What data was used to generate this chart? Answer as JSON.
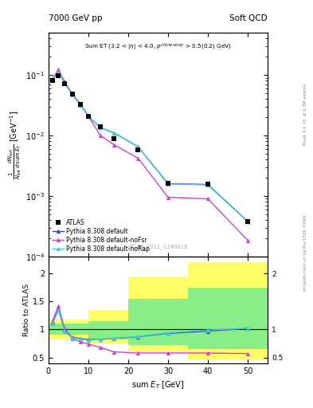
{
  "title_left": "7000 GeV pp",
  "title_right": "Soft QCD",
  "annotation": "Sum ET (3.2 < |η| < 4.0, p$^{ch(neutral)}$ > 0.5(0.2) GeV)",
  "watermark": "ATLAS_2012_I1183818",
  "right_label_top": "Rivet 3.1.10, ≥ 2.3M events",
  "right_label_bottom": "mcplots.cern.ch [arXiv:1306.3436]",
  "x_data": [
    1.0,
    2.5,
    4.0,
    6.0,
    8.0,
    10.0,
    13.0,
    16.5,
    22.5,
    30.0,
    40.0,
    50.0
  ],
  "atlas_y": [
    0.082,
    0.098,
    0.072,
    0.048,
    0.033,
    0.021,
    0.014,
    0.0088,
    0.0058,
    0.0016,
    0.00155,
    0.00038
  ],
  "pythia_default_y": [
    0.085,
    0.115,
    0.075,
    0.048,
    0.033,
    0.021,
    0.0135,
    0.011,
    0.0065,
    0.0016,
    0.00155,
    0.00038
  ],
  "pythia_nofsr_y": [
    0.088,
    0.122,
    0.078,
    0.048,
    0.032,
    0.021,
    0.01,
    0.007,
    0.0042,
    0.00095,
    0.0009,
    0.000185
  ],
  "pythia_norap_y": [
    0.085,
    0.113,
    0.073,
    0.047,
    0.032,
    0.021,
    0.0135,
    0.011,
    0.0065,
    0.00158,
    0.00152,
    0.00038
  ],
  "ratio_default": [
    1.12,
    1.38,
    1.0,
    0.86,
    0.84,
    0.82,
    0.82,
    0.84,
    0.87,
    0.93,
    0.97,
    1.02
  ],
  "ratio_nofsr": [
    1.15,
    1.42,
    1.02,
    0.84,
    0.78,
    0.74,
    0.68,
    0.6,
    0.58,
    0.58,
    0.58,
    0.57
  ],
  "ratio_norap": [
    1.1,
    1.34,
    0.97,
    0.85,
    0.83,
    0.81,
    0.82,
    0.84,
    0.875,
    0.94,
    0.99,
    1.02
  ],
  "band_x_edges": [
    0,
    3,
    10,
    20,
    35,
    55
  ],
  "band_yellow_lo": [
    0.82,
    0.82,
    0.75,
    0.6,
    0.45
  ],
  "band_yellow_hi": [
    1.18,
    1.18,
    1.35,
    1.95,
    2.2
  ],
  "band_green_lo": [
    0.9,
    0.9,
    0.82,
    0.72,
    0.65
  ],
  "band_green_hi": [
    1.1,
    1.1,
    1.15,
    1.55,
    1.75
  ],
  "color_atlas": "#000000",
  "color_default": "#4444dd",
  "color_nofsr": "#cc44cc",
  "color_norap": "#44cccc",
  "ylim_main": [
    0.0001,
    0.5
  ],
  "ylim_ratio": [
    0.4,
    2.3
  ],
  "xlim": [
    0,
    55
  ]
}
